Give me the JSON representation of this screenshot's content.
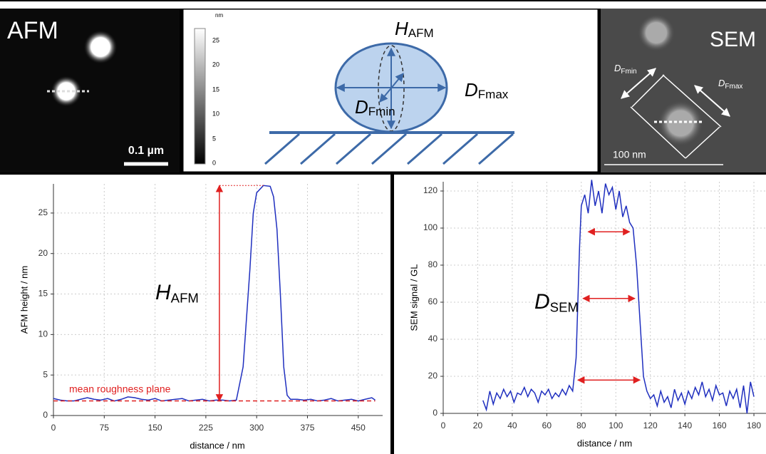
{
  "afm_image": {
    "title": "AFM",
    "scale_bar": "0.1 µm"
  },
  "schematic": {
    "unit": "nm",
    "colorbar_ticks": [
      "25",
      "20",
      "15",
      "10",
      "5",
      "0"
    ],
    "height_label": {
      "main": "H",
      "sub": "AFM"
    },
    "max_label": {
      "main": "D",
      "sub": "Fmax"
    },
    "min_label": {
      "main": "D",
      "sub": "Fmin"
    }
  },
  "sem_image": {
    "title": "SEM",
    "min_label": {
      "main": "D",
      "sub": "Fmin"
    },
    "max_label": {
      "main": "D",
      "sub": "Fmax"
    },
    "scale_bar": "100 nm"
  },
  "chart_data": [
    {
      "type": "line",
      "x_label": "distance / nm",
      "y_label": "AFM height / nm",
      "xlim": [
        0,
        486
      ],
      "ylim": [
        0,
        28.6
      ],
      "xticks": [
        0,
        75,
        150,
        225,
        300,
        375,
        450
      ],
      "yticks": [
        0,
        5,
        10,
        15,
        20,
        25
      ],
      "grid": true,
      "x": [
        0,
        10,
        20,
        30,
        40,
        50,
        60,
        70,
        80,
        90,
        100,
        110,
        120,
        130,
        140,
        150,
        160,
        170,
        180,
        190,
        200,
        210,
        220,
        230,
        240,
        250,
        260,
        270,
        280,
        290,
        295,
        300,
        310,
        320,
        325,
        330,
        335,
        340,
        345,
        350,
        360,
        370,
        380,
        390,
        400,
        410,
        420,
        430,
        440,
        450,
        460,
        470,
        475
      ],
      "series": [
        {
          "name": "AFM profile",
          "color": "#1f2fbf",
          "values": [
            2.1,
            1.9,
            1.8,
            1.8,
            2.0,
            2.2,
            2.0,
            1.9,
            2.1,
            1.8,
            2.0,
            2.3,
            2.2,
            2.0,
            1.9,
            2.1,
            1.8,
            1.9,
            2.0,
            2.1,
            1.8,
            1.9,
            2.0,
            1.8,
            1.9,
            1.9,
            1.8,
            1.9,
            6,
            18,
            25,
            27.5,
            28.4,
            28.3,
            27,
            23,
            15,
            6,
            2.5,
            2.0,
            2.0,
            1.9,
            2.0,
            1.8,
            1.9,
            2.1,
            1.8,
            1.9,
            2.0,
            1.8,
            2.0,
            2.2,
            1.9
          ]
        }
      ],
      "reference_line": 1.8,
      "reference_label": "mean roughness plane",
      "arrow": {
        "x": 245,
        "from": 1.8,
        "to": 28.4
      },
      "label": {
        "main": "H",
        "sub": "AFM"
      }
    },
    {
      "type": "line",
      "x_label": "distance / nm",
      "y_label": "SEM signal / GL",
      "xlim": [
        0,
        187
      ],
      "ylim": [
        0,
        125
      ],
      "xticks": [
        0,
        20,
        40,
        60,
        80,
        100,
        120,
        140,
        160,
        180
      ],
      "yticks": [
        0,
        20,
        40,
        60,
        80,
        100,
        120
      ],
      "grid": true,
      "x": [
        23,
        25,
        27,
        29,
        31,
        33,
        35,
        37,
        39,
        41,
        43,
        45,
        47,
        49,
        51,
        53,
        55,
        57,
        59,
        61,
        63,
        65,
        67,
        69,
        71,
        73,
        75,
        77,
        78,
        79,
        80,
        82,
        84,
        86,
        88,
        90,
        92,
        94,
        96,
        98,
        100,
        102,
        104,
        106,
        108,
        110,
        112,
        114,
        116,
        118,
        120,
        122,
        124,
        126,
        128,
        130,
        132,
        134,
        136,
        138,
        140,
        142,
        144,
        146,
        148,
        150,
        152,
        154,
        156,
        158,
        160,
        162,
        164,
        166,
        168,
        170,
        172,
        174,
        176,
        178,
        180
      ],
      "series": [
        {
          "name": "SEM profile",
          "color": "#1f2fbf",
          "values": [
            7,
            2,
            12,
            5,
            11,
            8,
            13,
            9,
            12,
            6,
            11,
            10,
            14,
            9,
            13,
            11,
            6,
            12,
            10,
            13,
            8,
            11,
            9,
            13,
            10,
            15,
            12,
            30,
            60,
            90,
            112,
            118,
            108,
            126,
            112,
            120,
            108,
            124,
            118,
            122,
            110,
            120,
            106,
            112,
            103,
            100,
            80,
            50,
            20,
            12,
            8,
            10,
            4,
            12,
            6,
            9,
            3,
            13,
            7,
            11,
            5,
            12,
            8,
            14,
            10,
            17,
            9,
            13,
            7,
            15,
            10,
            11,
            4,
            12,
            8,
            13,
            3,
            15,
            0,
            17,
            9
          ]
        }
      ],
      "arrows": [
        {
          "y": 98,
          "x": [
            84,
            108
          ]
        },
        {
          "y": 62,
          "x": [
            81,
            111
          ]
        },
        {
          "y": 18,
          "x": [
            78,
            114
          ]
        }
      ],
      "label": {
        "main": "D",
        "sub": "SEM"
      }
    }
  ]
}
